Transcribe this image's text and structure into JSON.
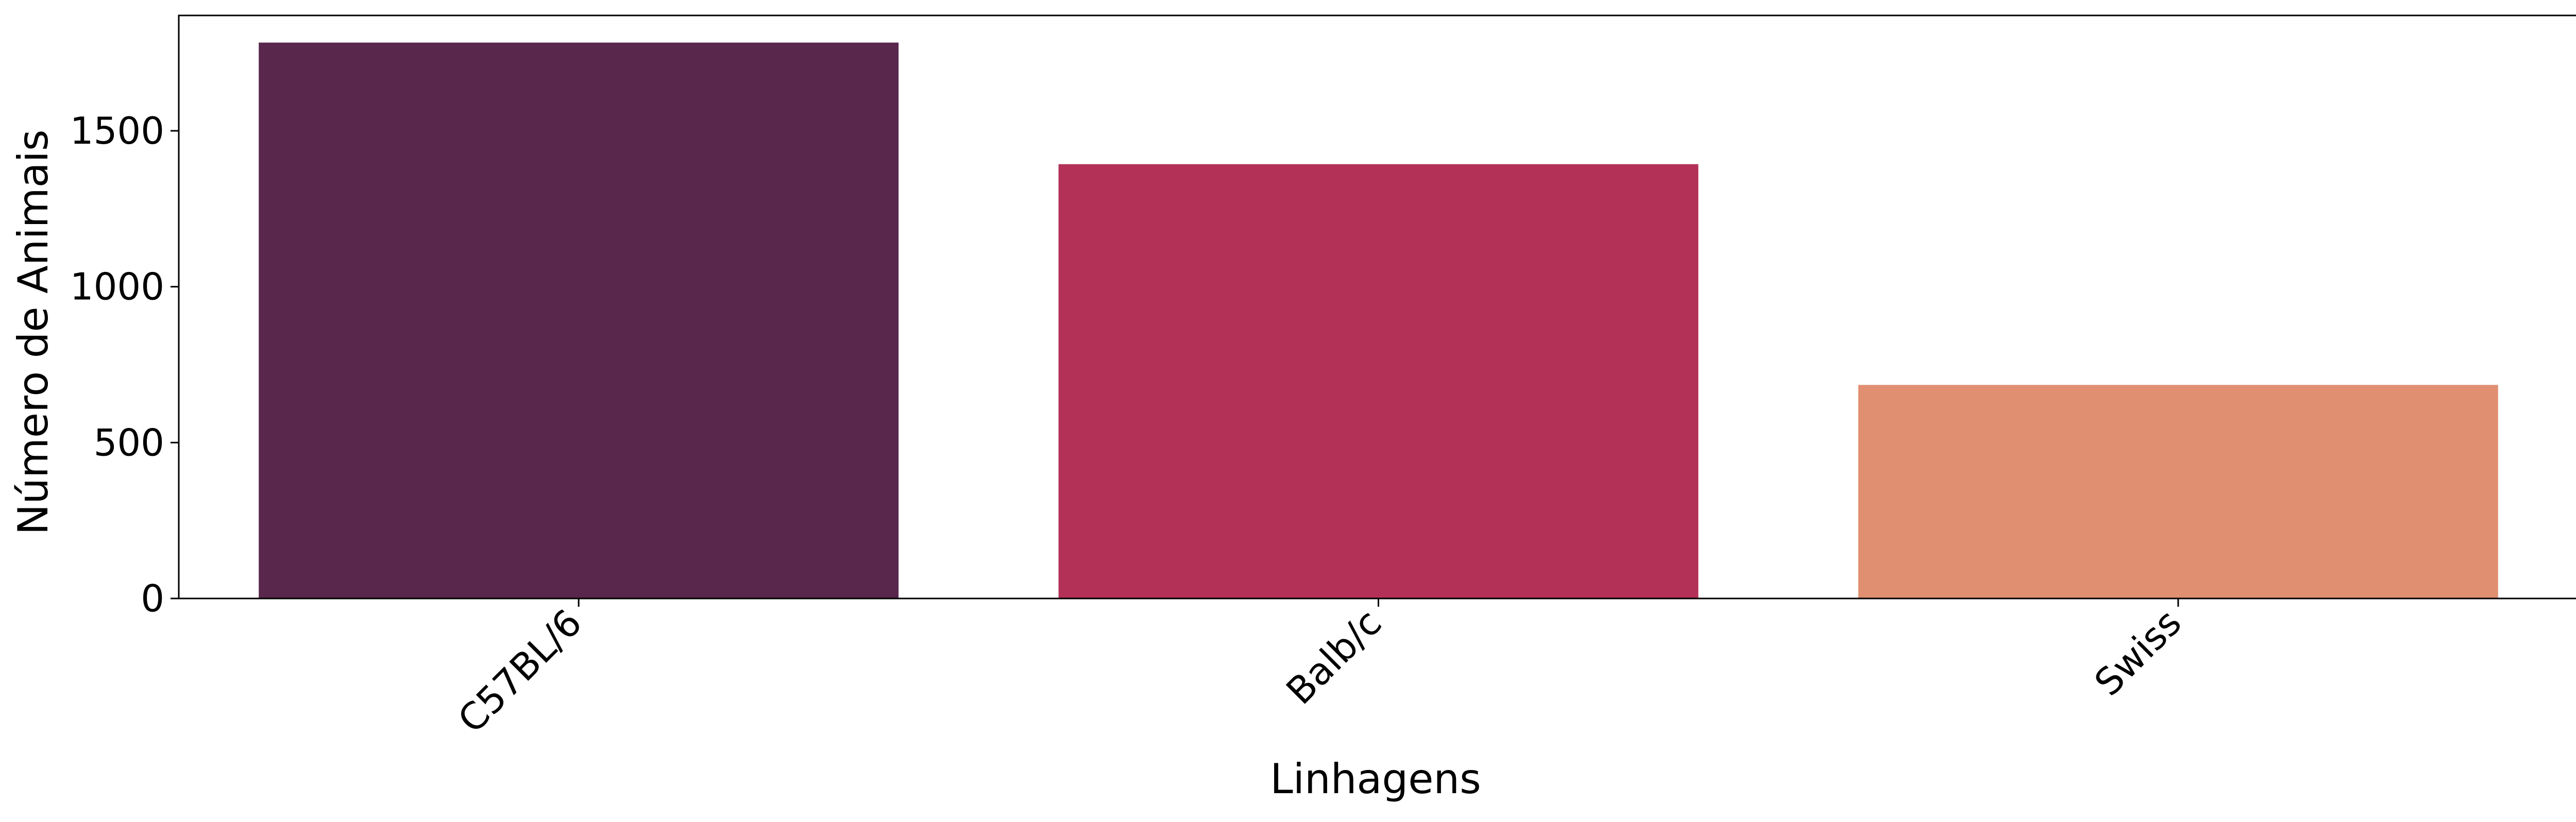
{
  "chart_data": {
    "type": "bar",
    "categories": [
      "C57BL/6",
      "Balb/c",
      "Swiss"
    ],
    "values": [
      1783,
      1393,
      685
    ],
    "colors": [
      "#5a274c",
      "#b33157",
      "#e08f71"
    ],
    "title": "",
    "xlabel": "Linhagens",
    "ylabel": "Número de Animais",
    "ylim": [
      0,
      1870
    ],
    "yticks": [
      0,
      500,
      1000,
      1500
    ],
    "ytick_labels": [
      "0",
      "500",
      "1000",
      "1500"
    ],
    "xtick_rotation": "45deg, right-aligned",
    "grid": false,
    "legend": "none"
  }
}
